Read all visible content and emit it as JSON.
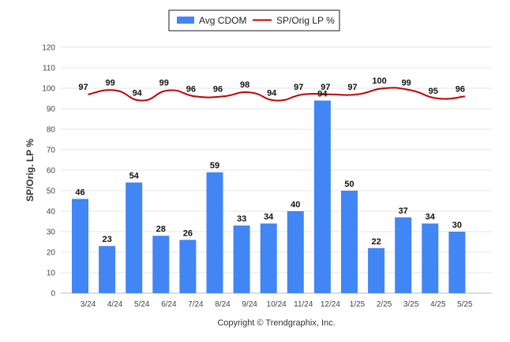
{
  "chart_data": {
    "type": "bar",
    "categories": [
      "3/24",
      "4/24",
      "5/24",
      "6/24",
      "7/24",
      "8/24",
      "9/24",
      "10/24",
      "11/24",
      "12/24",
      "1/25",
      "2/25",
      "3/25",
      "4/25",
      "5/25"
    ],
    "series": [
      {
        "name": "Avg CDOM",
        "type": "bar",
        "color": "#4285f4",
        "values": [
          46,
          23,
          54,
          28,
          26,
          59,
          33,
          34,
          40,
          94,
          50,
          22,
          37,
          34,
          30
        ]
      },
      {
        "name": "SP/Orig LP %",
        "type": "line",
        "color": "#c00000",
        "values": [
          97,
          99,
          94,
          99,
          96,
          96,
          98,
          94,
          97,
          97,
          97,
          100,
          99,
          95,
          96
        ]
      }
    ],
    "ylabel": "SP/Orig. LP %",
    "ylim": [
      0,
      120
    ],
    "yticks": [
      0,
      10,
      20,
      30,
      40,
      50,
      60,
      70,
      80,
      90,
      100,
      110,
      120
    ],
    "grid": true,
    "legend_position": "top-center"
  },
  "footer": "Copyright © Trendgraphix, Inc."
}
